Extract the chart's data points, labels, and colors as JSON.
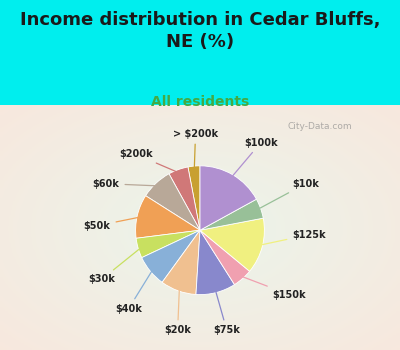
{
  "title": "Income distribution in Cedar Bluffs,\nNE (%)",
  "subtitle": "All residents",
  "title_color": "#1a1a1a",
  "subtitle_color": "#44aa44",
  "bg_outer": "#00eeee",
  "bg_chart": "#d8ede0",
  "watermark": "City-Data.com",
  "labels": [
    "> $200k",
    "$200k",
    "$60k",
    "$50k",
    "$30k",
    "$40k",
    "$20k",
    "$75k",
    "$150k",
    "$125k",
    "$10k",
    "$100k"
  ],
  "values": [
    3,
    5,
    8,
    11,
    5,
    8,
    9,
    10,
    5,
    14,
    5,
    17
  ],
  "colors": [
    "#c8a030",
    "#d07878",
    "#b8a898",
    "#f0a055",
    "#c8e060",
    "#88b0d8",
    "#f0c090",
    "#8888cc",
    "#f0a0b0",
    "#f0f080",
    "#98c098",
    "#b090d0"
  ],
  "label_color": "#222222",
  "figsize": [
    4.0,
    3.5
  ],
  "dpi": 100,
  "title_fontsize": 13,
  "subtitle_fontsize": 10
}
